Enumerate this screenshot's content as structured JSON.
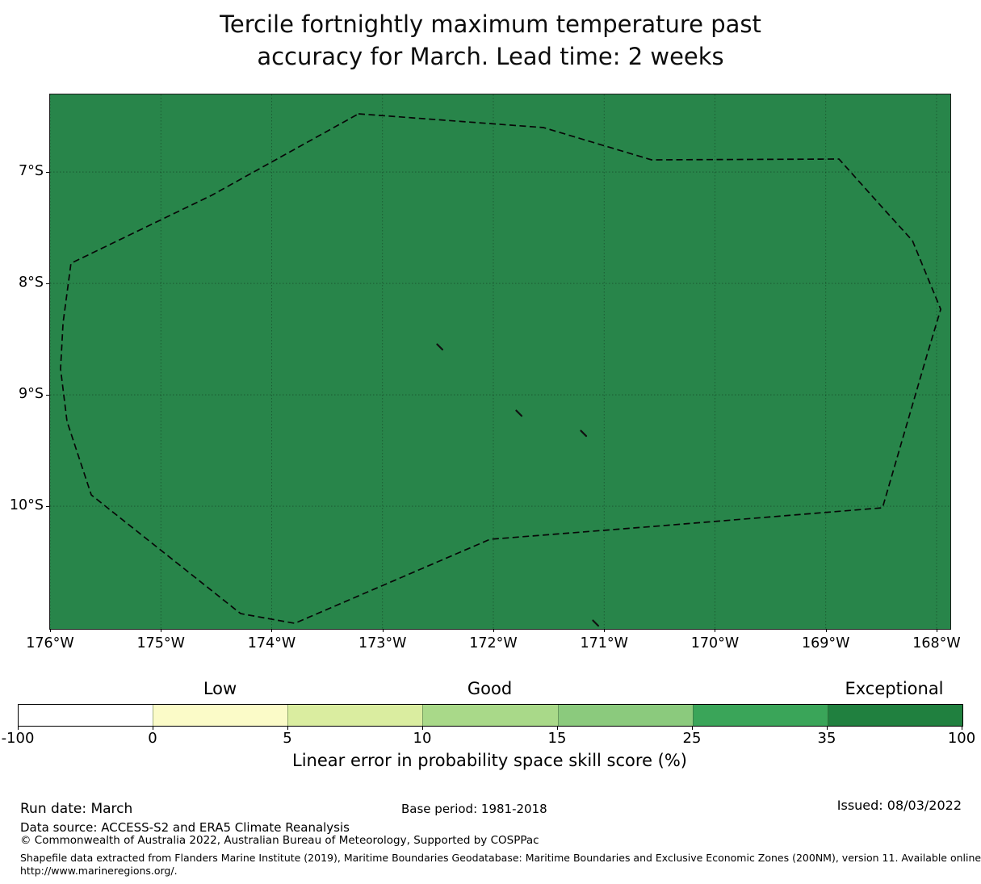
{
  "title": {
    "line1": "Tercile fortnightly maximum temperature past",
    "line2": "accuracy for March. Lead time: 2 weeks"
  },
  "chart_data": {
    "type": "heatmap",
    "subtype": "filled-eez-skill-map",
    "title": "Tercile fortnightly maximum temperature past accuracy for March. Lead time: 2 weeks",
    "region_fill_color": "#28854a",
    "region_skill_bin": "35 to 100 (Exceptional)",
    "grid_on": true,
    "map_extent": {
      "lon_min": -176.0,
      "lon_max": -167.876,
      "lat_top": -6.304,
      "lat_bottom": -11.101
    },
    "x_ticks": [
      {
        "value": -176,
        "label": "176°W"
      },
      {
        "value": -175,
        "label": "175°W"
      },
      {
        "value": -174,
        "label": "174°W"
      },
      {
        "value": -173,
        "label": "173°W"
      },
      {
        "value": -172,
        "label": "172°W"
      },
      {
        "value": -171,
        "label": "171°W"
      },
      {
        "value": -170,
        "label": "170°W"
      },
      {
        "value": -169,
        "label": "169°W"
      },
      {
        "value": -168,
        "label": "168°W"
      }
    ],
    "y_ticks": [
      {
        "value": -7,
        "label": "7°S"
      },
      {
        "value": -8,
        "label": "8°S"
      },
      {
        "value": -9,
        "label": "9°S"
      },
      {
        "value": -10,
        "label": "10°S"
      }
    ],
    "eez_boundary_style": {
      "color": "#070707",
      "dashed": true
    },
    "eez_boundary": [
      [
        -173.217,
        -6.478
      ],
      [
        -171.548,
        -6.601
      ],
      [
        -170.572,
        -6.891
      ],
      [
        -168.881,
        -6.884
      ],
      [
        -168.495,
        -7.312
      ],
      [
        -168.218,
        -7.616
      ],
      [
        -167.963,
        -8.232
      ],
      [
        -168.087,
        -8.645
      ],
      [
        -168.488,
        -10.014
      ],
      [
        -170.55,
        -10.181
      ],
      [
        -172.029,
        -10.297
      ],
      [
        -173.792,
        -11.051
      ],
      [
        -174.28,
        -10.964
      ],
      [
        -175.628,
        -9.899
      ],
      [
        -175.847,
        -9.239
      ],
      [
        -175.905,
        -8.768
      ],
      [
        -175.883,
        -8.355
      ],
      [
        -175.811,
        -7.819
      ],
      [
        -174.543,
        -7.21
      ]
    ],
    "islands": [
      [
        -172.481,
        -8.572
      ],
      [
        -171.767,
        -9.167
      ],
      [
        -171.184,
        -9.348
      ],
      [
        -171.075,
        -11.051
      ]
    ],
    "colorbar": {
      "boundaries": [
        -100,
        0,
        5,
        10,
        15,
        25,
        35,
        100
      ],
      "tick_labels": [
        "-100",
        "0",
        "5",
        "10",
        "15",
        "25",
        "35",
        "100"
      ],
      "segment_colors": [
        "#ffffff",
        "#fbfbc8",
        "#daeda0",
        "#a9d989",
        "#8bca7d",
        "#3aa559",
        "#20803f"
      ],
      "category_labels": [
        {
          "label": "Low",
          "segment_index": 1
        },
        {
          "label": "Good",
          "segment_index": 3
        },
        {
          "label": "Exceptional",
          "segment_index": 6
        }
      ],
      "axis_label": "Linear error in probability space skill score (%)"
    }
  },
  "footer": {
    "run_date": "Run date: March",
    "base_period": "Base period: 1981-2018",
    "issued": "Issued: 08/03/2022",
    "data_source": "Data source: ACCESS-S2 and ERA5 Climate Reanalysis",
    "copyright": "© Commonwealth of Australia 2022, Australian Bureau of Meteorology, Supported by COSPPac",
    "shapefile_line1": "Shapefile data extracted from Flanders Marine Institute (2019), Maritime Boundaries Geodatabase: Maritime Boundaries and Exclusive Economic Zones (200NM), version 11. Available online at",
    "shapefile_line2": "http://www.marineregions.org/."
  }
}
